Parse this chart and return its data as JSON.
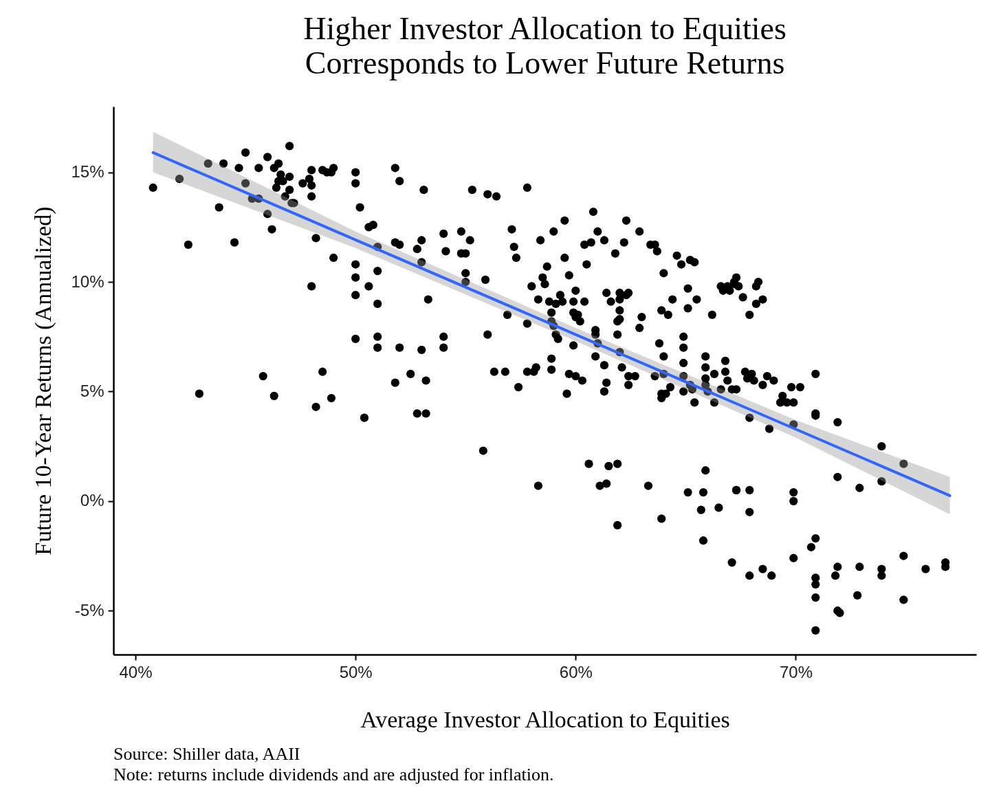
{
  "chart_data": {
    "type": "scatter",
    "title": "Higher Investor Allocation to Equities\nCorresponds to Lower Future Returns",
    "xlabel": "Average Investor Allocation to Equities",
    "ylabel": "Future 10-Year Returns (Annualized)",
    "annotations": [
      "Source: Shiller data, AAII",
      "Note: returns include dividends and are adjusted for inflation."
    ],
    "xlim": [
      39,
      78.2
    ],
    "ylim": [
      -7,
      18
    ],
    "xticks": [
      {
        "value": 40,
        "label": "40%"
      },
      {
        "value": 50,
        "label": "50%"
      },
      {
        "value": 60,
        "label": "60%"
      },
      {
        "value": 70,
        "label": "70%"
      }
    ],
    "yticks": [
      {
        "value": -5,
        "label": "-5%"
      },
      {
        "value": 0,
        "label": "0%"
      },
      {
        "value": 5,
        "label": "5%"
      },
      {
        "value": 10,
        "label": "10%"
      },
      {
        "value": 15,
        "label": "15%"
      }
    ],
    "grid": false,
    "series": [
      {
        "color": "#000000",
        "marker": "circle",
        "x": [
          40.8,
          42.0,
          42.4,
          42.9,
          43.3,
          43.8,
          44.0,
          44.5,
          44.7,
          45.0,
          45.0,
          45.3,
          45.6,
          45.6,
          45.8,
          46.0,
          46.0,
          46.2,
          46.3,
          46.4,
          46.3,
          46.5,
          46.5,
          46.6,
          46.7,
          46.8,
          47.0,
          47.0,
          47.0,
          47.1,
          47.2,
          47.6,
          47.9,
          48.0,
          48.0,
          48.0,
          48.0,
          48.2,
          48.2,
          48.5,
          48.5,
          48.7,
          48.9,
          49.0,
          49.0,
          48.9,
          50.0,
          50.0,
          50.0,
          50.0,
          50.0,
          50.0,
          50.2,
          50.4,
          50.6,
          50.6,
          50.8,
          51.0,
          51.0,
          51.0,
          51.0,
          51.0,
          51.8,
          51.8,
          51.8,
          52.0,
          52.0,
          52.0,
          52.5,
          52.8,
          53.0,
          53.0,
          53.0,
          52.8,
          53.1,
          53.2,
          53.2,
          53.3,
          54.0,
          54.0,
          54.0,
          54.1,
          54.8,
          54.8,
          55.0,
          55.0,
          55.0,
          55.2,
          55.3,
          55.8,
          55.9,
          56.0,
          56.0,
          56.4,
          56.3,
          56.8,
          56.9,
          57.1,
          57.2,
          57.3,
          57.4,
          57.8,
          57.8,
          57.8,
          58.0,
          58.1,
          58.2,
          58.3,
          58.3,
          58.4,
          58.5,
          58.6,
          58.7,
          58.8,
          58.9,
          58.9,
          58.9,
          58.9,
          59.0,
          59.0,
          59.1,
          59.1,
          59.2,
          59.3,
          59.4,
          59.5,
          59.5,
          59.6,
          59.7,
          59.7,
          59.9,
          59.9,
          59.9,
          60.0,
          60.0,
          60.0,
          60.1,
          60.2,
          60.3,
          60.4,
          60.4,
          60.5,
          60.6,
          60.7,
          60.8,
          60.9,
          60.9,
          60.9,
          61.0,
          61.0,
          61.1,
          61.3,
          61.3,
          61.3,
          61.4,
          61.4,
          61.4,
          61.5,
          61.6,
          61.8,
          61.9,
          61.9,
          62.0,
          62.0,
          62.0,
          62.0,
          61.9,
          61.9,
          62.0,
          62.1,
          62.2,
          62.3,
          62.3,
          62.4,
          62.4,
          62.4,
          62.7,
          62.9,
          62.9,
          63.0,
          63.3,
          63.4,
          63.6,
          63.6,
          63.7,
          63.8,
          63.9,
          63.9,
          63.9,
          63.9,
          64.0,
          64.0,
          64.0,
          64.1,
          64.2,
          64.3,
          64.4,
          64.6,
          64.8,
          64.9,
          64.9,
          64.9,
          64.9,
          64.9,
          65.1,
          65.1,
          65.1,
          65.2,
          65.2,
          65.3,
          65.4,
          65.4,
          65.5,
          65.7,
          65.8,
          65.8,
          65.9,
          65.9,
          65.9,
          65.9,
          65.9,
          66.0,
          66.2,
          66.3,
          66.3,
          66.5,
          66.6,
          66.6,
          66.7,
          66.8,
          66.8,
          66.9,
          66.9,
          67.0,
          67.1,
          67.1,
          67.2,
          67.2,
          67.3,
          67.3,
          67.3,
          67.4,
          67.3,
          67.6,
          67.7,
          67.8,
          67.9,
          67.9,
          67.9,
          67.9,
          67.9,
          68.0,
          68.1,
          68.2,
          68.2,
          68.3,
          68.5,
          68.5,
          68.5,
          68.7,
          68.8,
          68.9,
          69.0,
          69.3,
          69.4,
          69.6,
          69.8,
          69.9,
          69.9,
          69.9,
          69.9,
          69.9,
          70.2,
          70.7,
          70.9,
          70.9,
          70.9,
          70.9,
          70.9,
          70.9,
          70.9,
          70.9,
          71.8,
          71.9,
          71.9,
          71.9,
          71.9,
          72.0,
          72.8,
          72.9,
          72.9,
          73.9,
          73.9,
          73.9,
          73.9,
          74.9,
          74.9,
          74.9,
          75.9,
          76.8,
          76.8
        ],
        "values": [
          14.3,
          14.7,
          11.7,
          4.9,
          15.4,
          13.4,
          15.4,
          11.8,
          15.2,
          15.9,
          14.5,
          13.8,
          13.8,
          15.2,
          5.7,
          15.7,
          13.1,
          12.4,
          15.2,
          14.3,
          4.8,
          15.4,
          14.6,
          14.9,
          14.6,
          13.9,
          16.2,
          14.8,
          14.2,
          13.6,
          13.6,
          14.5,
          14.7,
          14.4,
          13.9,
          9.8,
          15.1,
          12.0,
          4.3,
          5.9,
          15.1,
          15.0,
          15.0,
          15.2,
          11.1,
          4.7,
          15.0,
          14.5,
          10.8,
          10.2,
          9.4,
          7.4,
          13.4,
          3.8,
          9.8,
          12.5,
          12.6,
          10.5,
          11.6,
          9.0,
          7.5,
          7.0,
          15.2,
          11.8,
          5.4,
          14.6,
          11.7,
          7.0,
          5.8,
          11.5,
          11.9,
          10.9,
          6.9,
          4.0,
          14.2,
          5.5,
          4.0,
          9.2,
          12.2,
          7.5,
          7.0,
          11.4,
          12.3,
          11.3,
          11.3,
          10.4,
          10.0,
          11.9,
          14.2,
          2.3,
          10.1,
          7.6,
          14.0,
          13.9,
          5.9,
          5.9,
          8.5,
          12.4,
          11.6,
          11.1,
          5.2,
          14.3,
          8.1,
          5.9,
          9.8,
          5.9,
          6.1,
          0.7,
          9.2,
          11.9,
          10.2,
          9.9,
          10.7,
          9.1,
          8.6,
          8.2,
          6.0,
          6.5,
          12.3,
          8.0,
          7.6,
          9.0,
          7.4,
          9.4,
          9.1,
          12.8,
          11.1,
          4.9,
          5.8,
          10.3,
          9.1,
          8.6,
          7.1,
          9.6,
          8.4,
          5.7,
          8.5,
          8.2,
          5.5,
          9.1,
          11.7,
          10.8,
          1.7,
          11.8,
          13.2,
          6.6,
          7.8,
          7.6,
          12.3,
          7.2,
          0.7,
          6.2,
          5.0,
          11.9,
          9.5,
          5.4,
          0.8,
          1.6,
          9.1,
          11.3,
          8.2,
          7.6,
          8.3,
          8.7,
          9.2,
          9.5,
          1.7,
          -1.1,
          6.8,
          6.1,
          11.8,
          9.4,
          12.8,
          9.5,
          5.7,
          5.3,
          5.7,
          7.9,
          12.3,
          8.4,
          0.7,
          11.7,
          5.7,
          11.7,
          11.4,
          7.2,
          4.9,
          -0.8,
          4.7,
          8.7,
          6.6,
          5.8,
          10.4,
          4.9,
          8.5,
          5.2,
          9.2,
          11.2,
          10.8,
          7.5,
          7.0,
          5.0,
          6.3,
          5.7,
          0.4,
          9.7,
          8.8,
          11.0,
          5.3,
          5.1,
          10.9,
          4.5,
          9.2,
          -0.4,
          -1.8,
          0.4,
          1.4,
          6.6,
          6.1,
          5.6,
          5.3,
          5.0,
          8.5,
          4.5,
          5.8,
          -0.3,
          9.8,
          5.1,
          9.6,
          6.4,
          5.9,
          5.5,
          9.8,
          9.6,
          -2.8,
          5.1,
          10.0,
          9.9,
          10.2,
          0.5,
          5.1,
          9.8,
          0.5,
          9.3,
          5.9,
          5.6,
          8.5,
          -3.4,
          3.8,
          0.5,
          -0.5,
          5.8,
          5.5,
          9.0,
          9.8,
          10.0,
          9.2,
          -3.1,
          5.3,
          5.7,
          3.3,
          -3.4,
          5.5,
          4.5,
          4.8,
          4.5,
          5.2,
          3.5,
          4.5,
          0.4,
          0.0,
          -2.6,
          5.2,
          -2.1,
          5.8,
          4.0,
          3.9,
          -1.7,
          -3.5,
          -3.8,
          -4.4,
          -5.9,
          -3.4,
          3.6,
          1.1,
          -3.0,
          -5.0,
          -5.1,
          -4.3,
          0.6,
          -3.0,
          2.5,
          -3.1,
          -3.4,
          0.9,
          1.7,
          -2.5,
          -4.5,
          -3.1,
          -2.8,
          -3.0
        ]
      },
      {
        "type": "line",
        "color": "#3366ff",
        "x": [
          40.8,
          50,
          60,
          70,
          77
        ],
        "values": [
          15.9,
          11.92,
          7.6,
          3.28,
          0.25
        ],
        "lower": [
          15.0,
          11.55,
          7.3,
          2.9,
          -0.6
        ],
        "upper": [
          16.85,
          12.3,
          7.9,
          3.7,
          1.1
        ]
      }
    ]
  }
}
